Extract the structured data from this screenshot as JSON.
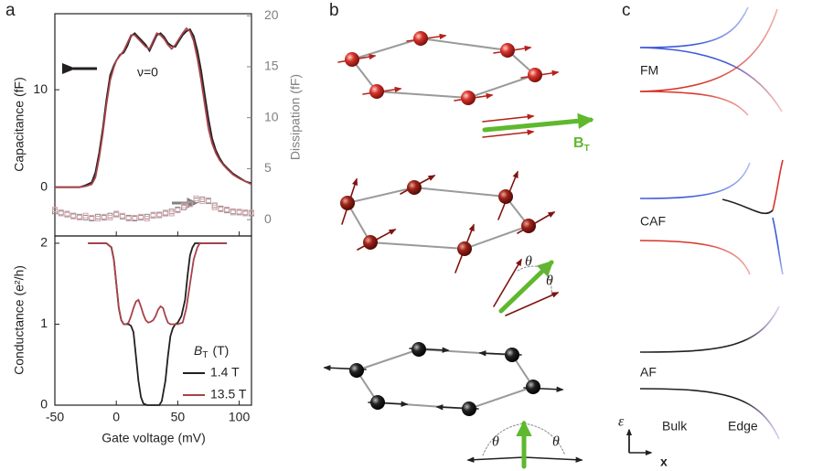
{
  "panel_labels": [
    "a",
    "b",
    "c"
  ],
  "chart_data": [
    {
      "type": "line",
      "ylabel": "Capacitance (fF)",
      "y2label": "Dissipation (fF)",
      "annotation": "ν=0",
      "xlim": [
        -50,
        110
      ],
      "ylim": [
        -5,
        17.8
      ],
      "yticks": [
        0,
        10
      ],
      "y2lim": [
        -1.6,
        20.2
      ],
      "y2ticks": [
        0,
        5,
        10,
        15,
        20
      ],
      "series": [
        {
          "color": "#231f20",
          "x": [
            -50,
            -40,
            -30,
            -25,
            -20,
            -17,
            -14,
            -11,
            -8,
            -5,
            -2,
            0,
            3,
            6,
            9,
            12,
            15,
            18,
            21,
            24,
            27,
            30,
            33,
            36,
            39,
            42,
            45,
            48,
            51,
            54,
            57,
            60,
            63,
            66,
            69,
            72,
            75,
            78,
            81,
            84,
            87,
            90,
            95,
            100,
            105,
            110
          ],
          "values": [
            0,
            0,
            0,
            0.2,
            0.5,
            1.5,
            3.5,
            6,
            9,
            11.5,
            12.5,
            13,
            13.6,
            13.8,
            14.5,
            15.5,
            15.8,
            15.4,
            15,
            14.6,
            14,
            14.8,
            15.6,
            15.8,
            15.4,
            14.8,
            14.5,
            14.4,
            15,
            15.6,
            16,
            16.2,
            15.5,
            14,
            12,
            9.5,
            7,
            5,
            3.8,
            3,
            2.4,
            2,
            1.4,
            1,
            0.6,
            0.4
          ]
        },
        {
          "color": "#a8424a",
          "x": [
            -50,
            -40,
            -30,
            -25,
            -20,
            -17,
            -14,
            -11,
            -8,
            -5,
            -2,
            0,
            3,
            6,
            9,
            12,
            15,
            18,
            21,
            24,
            27,
            30,
            33,
            36,
            39,
            42,
            45,
            48,
            51,
            54,
            57,
            60,
            63,
            66,
            69,
            72,
            75,
            78,
            81,
            84,
            87,
            90,
            95,
            100,
            105,
            110
          ],
          "values": [
            0,
            0,
            0,
            0.1,
            0.3,
            1,
            3,
            5.5,
            8.5,
            11,
            12.3,
            13,
            13.5,
            14,
            14.8,
            15.6,
            15.6,
            15.2,
            14.8,
            14.4,
            14.2,
            15,
            15.8,
            15.6,
            15.2,
            14.6,
            14.2,
            14.6,
            15.2,
            15.8,
            16.3,
            16,
            15,
            13.2,
            11,
            8.5,
            6,
            4.5,
            3.5,
            2.8,
            2.3,
            1.9,
            1.3,
            0.9,
            0.6,
            0.3
          ]
        },
        {
          "type": "scatter",
          "axis": "y2",
          "color": "#8a8a8a",
          "x": [
            -50,
            -45,
            -40,
            -35,
            -30,
            -25,
            -20,
            -15,
            -10,
            -5,
            0,
            5,
            10,
            15,
            20,
            25,
            30,
            35,
            40,
            45,
            50,
            55,
            60,
            65,
            70,
            75,
            80,
            85,
            90,
            95,
            100,
            105,
            110
          ],
          "values": [
            0.8,
            0.7,
            0.5,
            0.4,
            0.3,
            0.2,
            0.1,
            0.3,
            0.2,
            0.4,
            0.5,
            0.3,
            0.2,
            0.1,
            0.2,
            0.3,
            0.4,
            0.5,
            0.6,
            0.8,
            1,
            1.2,
            1.6,
            1.9,
            2,
            1.8,
            1.4,
            1.1,
            0.9,
            0.8,
            0.7,
            0.7,
            0.6
          ]
        },
        {
          "type": "scatter",
          "axis": "y2",
          "color": "#d9a2aa",
          "x": [
            -50,
            -45,
            -40,
            -35,
            -30,
            -25,
            -20,
            -15,
            -10,
            -5,
            0,
            5,
            10,
            15,
            20,
            25,
            30,
            35,
            40,
            45,
            50,
            55,
            60,
            65,
            70,
            75,
            80,
            85,
            90,
            95,
            100,
            105,
            110
          ],
          "values": [
            1,
            0.6,
            0.6,
            0.3,
            0.2,
            0.4,
            0.2,
            0.1,
            0.3,
            0.2,
            0.6,
            0.4,
            0.1,
            0.2,
            0.3,
            0.1,
            0.5,
            0.4,
            0.7,
            0.6,
            0.9,
            1.4,
            1.5,
            2.1,
            1.8,
            1.9,
            1.2,
            1,
            1,
            0.7,
            0.8,
            0.6,
            0.7
          ]
        }
      ]
    },
    {
      "type": "line",
      "ylabel": "Conductance (e²/h)",
      "xlabel": "Gate voltage (mV)",
      "legend_title": {
        "symbol": "B",
        "subscript": "T",
        "unit": "(T)"
      },
      "xlim": [
        -50,
        110
      ],
      "xticks": [
        -50,
        0,
        50,
        100
      ],
      "ylim": [
        0,
        2.09
      ],
      "yticks": [
        0,
        1,
        2
      ],
      "series": [
        {
          "name": "1.4 T",
          "color": "#231f20",
          "x": [
            -23,
            -15,
            -8,
            -4,
            -2,
            0,
            2,
            4,
            6,
            8,
            10,
            12,
            14,
            16,
            18,
            20,
            22,
            25,
            30,
            35,
            37,
            40,
            42,
            44,
            46,
            48,
            50,
            53,
            56,
            58,
            60,
            62,
            64,
            66,
            70,
            80,
            90
          ],
          "values": [
            2,
            2,
            2,
            1.95,
            1.8,
            1.5,
            1.2,
            1.05,
            1,
            1,
            1,
            0.98,
            0.9,
            0.6,
            0.3,
            0.1,
            0.02,
            0,
            0,
            0,
            0.05,
            0.3,
            0.6,
            0.85,
            0.95,
            1,
            1.02,
            1.1,
            1.3,
            1.6,
            1.85,
            1.95,
            2,
            2,
            2,
            2,
            2
          ]
        },
        {
          "name": "13.5 T",
          "color": "#a8424a",
          "x": [
            -23,
            -15,
            -8,
            -4,
            -2,
            0,
            2,
            4,
            6,
            8,
            10,
            12,
            14,
            16,
            18,
            20,
            22,
            24,
            26,
            28,
            30,
            32,
            34,
            36,
            38,
            40,
            42,
            44,
            46,
            50,
            54,
            57,
            60,
            63,
            66,
            68,
            70,
            80,
            90
          ],
          "values": [
            2,
            2,
            2,
            1.95,
            1.8,
            1.5,
            1.2,
            1.05,
            1,
            1,
            1.02,
            1.1,
            1.2,
            1.28,
            1.3,
            1.22,
            1.12,
            1.05,
            1.02,
            1.03,
            1.05,
            1.1,
            1.18,
            1.22,
            1.2,
            1.1,
            1.02,
            1,
            1,
            1,
            1.02,
            1.2,
            1.5,
            1.8,
            1.95,
            2,
            2,
            2,
            2
          ]
        }
      ]
    }
  ],
  "diagram_b": {
    "field_label": {
      "symbol": "B",
      "subscript": "T"
    },
    "angle_labels": [
      "θ",
      "θ",
      "θ",
      "θ"
    ]
  },
  "diagram_c": {
    "phases": [
      "FM",
      "CAF",
      "AF"
    ],
    "axis_labels": {
      "y": "ε",
      "x": "x"
    },
    "regions": [
      "Bulk",
      "Edge"
    ]
  }
}
